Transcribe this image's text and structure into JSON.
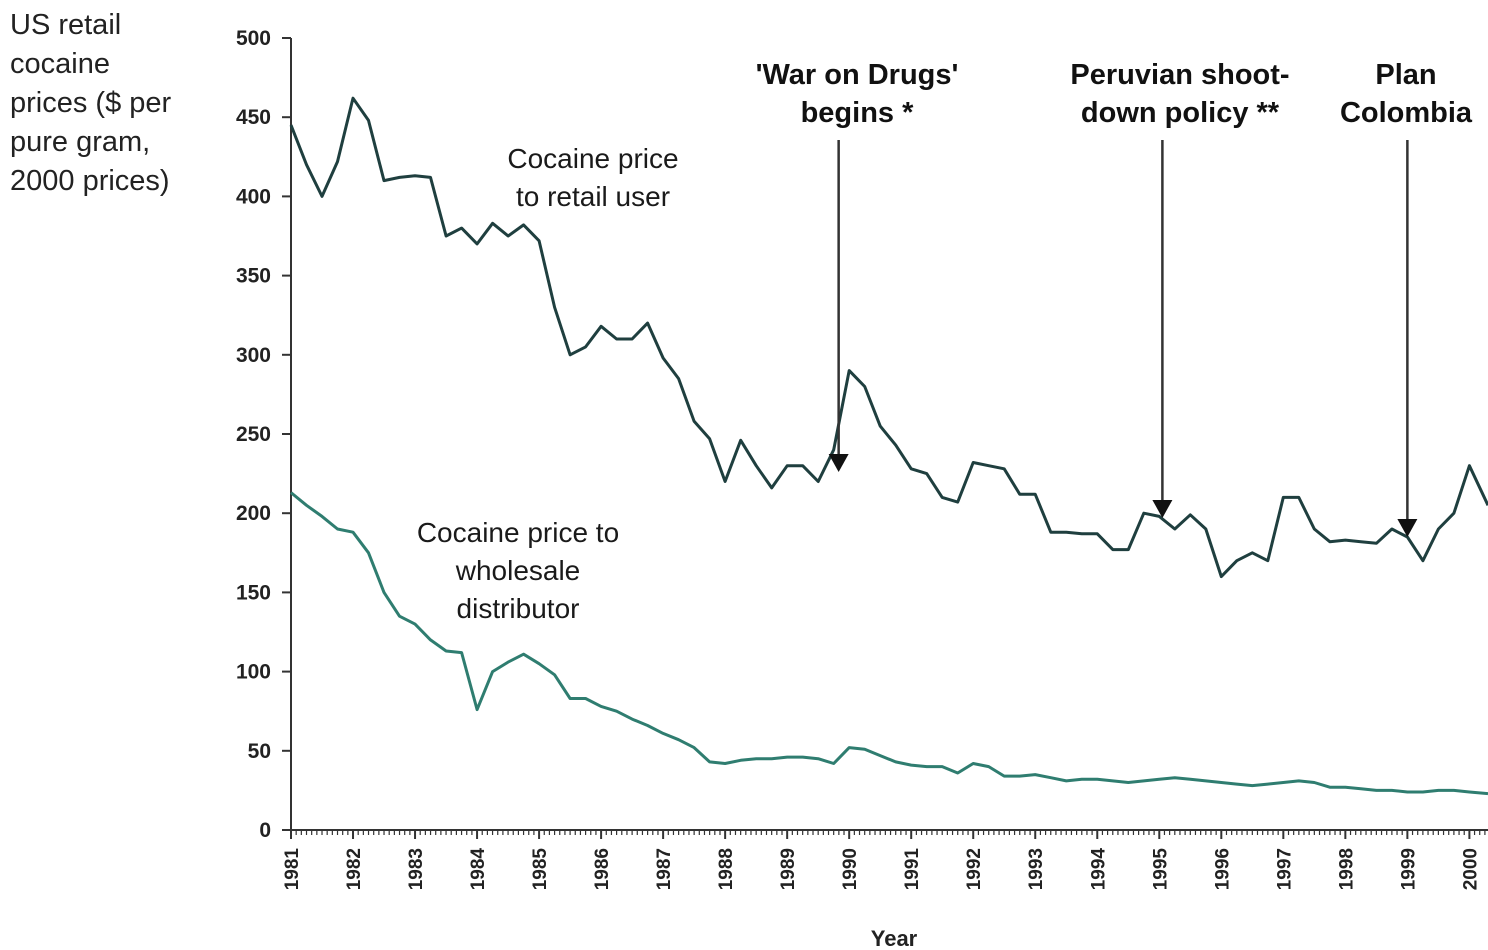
{
  "chart_data": {
    "type": "line",
    "ylabel": "US retail\ncocaine\nprices ($ per\npure gram,\n2000 prices)",
    "xlabel": "Year",
    "ylim": [
      0,
      500
    ],
    "xlim": [
      1981,
      2000.3
    ],
    "yticks": [
      0,
      50,
      100,
      150,
      200,
      250,
      300,
      350,
      400,
      450,
      500
    ],
    "xticks": [
      1981,
      1982,
      1983,
      1984,
      1985,
      1986,
      1987,
      1988,
      1989,
      1990,
      1991,
      1992,
      1993,
      1994,
      1995,
      1996,
      1997,
      1998,
      1999,
      2000
    ],
    "series": [
      {
        "name": "Cocaine price to retail user",
        "color": "#1f3f3f",
        "x": [
          1981,
          1981.25,
          1981.5,
          1981.75,
          1982,
          1982.25,
          1982.5,
          1982.75,
          1983,
          1983.25,
          1983.5,
          1983.75,
          1984,
          1984.25,
          1984.5,
          1984.75,
          1985,
          1985.25,
          1985.5,
          1985.75,
          1986,
          1986.25,
          1986.5,
          1986.75,
          1987,
          1987.25,
          1987.5,
          1987.75,
          1988,
          1988.25,
          1988.5,
          1988.75,
          1989,
          1989.25,
          1989.5,
          1989.75,
          1990,
          1990.25,
          1990.5,
          1990.75,
          1991,
          1991.25,
          1991.5,
          1991.75,
          1992,
          1992.25,
          1992.5,
          1992.75,
          1993,
          1993.25,
          1993.5,
          1993.75,
          1994,
          1994.25,
          1994.5,
          1994.75,
          1995,
          1995.25,
          1995.5,
          1995.75,
          1996,
          1996.25,
          1996.5,
          1996.75,
          1997,
          1997.25,
          1997.5,
          1997.75,
          1998,
          1998.25,
          1998.5,
          1998.75,
          1999,
          1999.25,
          1999.5,
          1999.75,
          2000,
          2000.3
        ],
        "values": [
          445,
          420,
          400,
          422,
          462,
          448,
          410,
          412,
          413,
          412,
          375,
          380,
          370,
          383,
          375,
          382,
          372,
          330,
          300,
          305,
          318,
          310,
          310,
          320,
          298,
          285,
          258,
          247,
          220,
          246,
          230,
          216,
          230,
          230,
          220,
          240,
          290,
          280,
          255,
          243,
          228,
          225,
          210,
          207,
          232,
          230,
          228,
          212,
          212,
          188,
          188,
          187,
          187,
          177,
          177,
          200,
          198,
          190,
          199,
          190,
          160,
          170,
          175,
          170,
          210,
          210,
          190,
          182,
          183,
          182,
          181,
          190,
          185,
          170,
          190,
          200,
          230,
          205
        ]
      },
      {
        "name": "Cocaine price to wholesale distributor",
        "color": "#2f7d70",
        "x": [
          1981,
          1981.25,
          1981.5,
          1981.75,
          1982,
          1982.25,
          1982.5,
          1982.75,
          1983,
          1983.25,
          1983.5,
          1983.75,
          1984,
          1984.25,
          1984.5,
          1984.75,
          1985,
          1985.25,
          1985.5,
          1985.75,
          1986,
          1986.25,
          1986.5,
          1986.75,
          1987,
          1987.25,
          1987.5,
          1987.75,
          1988,
          1988.25,
          1988.5,
          1988.75,
          1989,
          1989.25,
          1989.5,
          1989.75,
          1990,
          1990.25,
          1990.5,
          1990.75,
          1991,
          1991.25,
          1991.5,
          1991.75,
          1992,
          1992.25,
          1992.5,
          1992.75,
          1993,
          1993.25,
          1993.5,
          1993.75,
          1994,
          1994.25,
          1994.5,
          1994.75,
          1995,
          1995.25,
          1995.5,
          1995.75,
          1996,
          1996.25,
          1996.5,
          1996.75,
          1997,
          1997.25,
          1997.5,
          1997.75,
          1998,
          1998.25,
          1998.5,
          1998.75,
          1999,
          1999.25,
          1999.5,
          1999.75,
          2000,
          2000.3
        ],
        "values": [
          213,
          205,
          198,
          190,
          188,
          175,
          150,
          135,
          130,
          120,
          113,
          112,
          76,
          100,
          106,
          111,
          105,
          98,
          83,
          83,
          78,
          75,
          70,
          66,
          61,
          57,
          52,
          43,
          42,
          44,
          45,
          45,
          46,
          46,
          45,
          42,
          52,
          51,
          47,
          43,
          41,
          40,
          40,
          36,
          42,
          40,
          34,
          34,
          35,
          33,
          31,
          32,
          32,
          31,
          30,
          31,
          32,
          33,
          32,
          31,
          30,
          29,
          28,
          29,
          30,
          31,
          30,
          27,
          27,
          26,
          25,
          25,
          24,
          24,
          25,
          25,
          24,
          23
        ]
      }
    ],
    "annotations": [
      {
        "text": "Cocaine price\nto retail user"
      },
      {
        "text": "Cocaine price to\nwholesale\ndistributor"
      }
    ],
    "events": [
      {
        "label": "'War on Drugs'\nbegins *",
        "x": 1989.83,
        "y": 226
      },
      {
        "label": "Peruvian shoot-\ndown policy **",
        "x": 1995.05,
        "y": 197
      },
      {
        "label": "Plan\nColombia",
        "x": 1999,
        "y": 185
      }
    ]
  }
}
